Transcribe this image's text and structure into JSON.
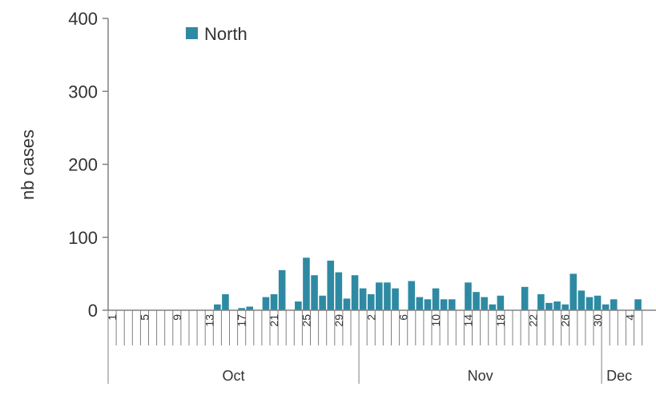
{
  "chart_data": {
    "type": "bar",
    "title": "",
    "ylabel": "nb cases",
    "xlabel": "",
    "ylim": [
      0,
      400
    ],
    "yticks": [
      0,
      100,
      200,
      300,
      400
    ],
    "grid": false,
    "legend_position": "top-left",
    "colors": {
      "bar": "#2e8aa3",
      "axis": "#808080",
      "text": "#333333"
    },
    "categories": [
      "1",
      "2",
      "3",
      "4",
      "5",
      "6",
      "7",
      "8",
      "9",
      "10",
      "11",
      "12",
      "13",
      "14",
      "15",
      "16",
      "17",
      "18",
      "19",
      "20",
      "21",
      "22",
      "23",
      "24",
      "25",
      "26",
      "27",
      "28",
      "29",
      "30",
      "31",
      "1",
      "2",
      "3",
      "4",
      "5",
      "6",
      "7",
      "8",
      "9",
      "10",
      "11",
      "12",
      "13",
      "14",
      "15",
      "16",
      "17",
      "18",
      "19",
      "20",
      "21",
      "22",
      "23",
      "24",
      "25",
      "26",
      "27",
      "28",
      "29",
      "30",
      "1",
      "2",
      "3",
      "4",
      "5"
    ],
    "tick_labels": [
      "1",
      "",
      "",
      "",
      "5",
      "",
      "",
      "",
      "9",
      "",
      "",
      "",
      "13",
      "",
      "",
      "",
      "17",
      "",
      "",
      "",
      "21",
      "",
      "",
      "",
      "25",
      "",
      "",
      "",
      "29",
      "",
      "",
      "",
      "2",
      "",
      "",
      "",
      "6",
      "",
      "",
      "",
      "10",
      "",
      "",
      "",
      "14",
      "",
      "",
      "",
      "18",
      "",
      "",
      "",
      "22",
      "",
      "",
      "",
      "26",
      "",
      "",
      "",
      "30",
      "",
      "",
      "",
      "4",
      ""
    ],
    "months": [
      {
        "label": "Oct",
        "start": 0,
        "count": 31
      },
      {
        "label": "Nov",
        "start": 31,
        "count": 30
      },
      {
        "label": "Dec",
        "start": 61,
        "count": 5
      }
    ],
    "series": [
      {
        "name": "North",
        "values": [
          0,
          0,
          0,
          0,
          0,
          0,
          0,
          0,
          0,
          0,
          0,
          0,
          0,
          8,
          22,
          0,
          3,
          5,
          0,
          18,
          22,
          55,
          0,
          12,
          72,
          48,
          20,
          68,
          52,
          16,
          48,
          30,
          22,
          38,
          38,
          30,
          0,
          40,
          18,
          15,
          30,
          15,
          15,
          0,
          38,
          25,
          18,
          8,
          20,
          0,
          0,
          32,
          0,
          22,
          10,
          12,
          8,
          50,
          27,
          18,
          20,
          8,
          15,
          0,
          0,
          15
        ]
      }
    ]
  }
}
